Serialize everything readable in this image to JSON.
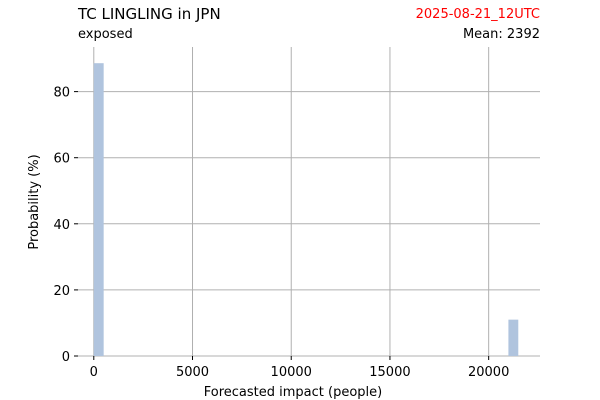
{
  "header": {
    "title": "TC LINGLING in JPN",
    "subtitle": "exposed",
    "date": "2025-08-21_12UTC",
    "mean": "Mean: 2392"
  },
  "colors": {
    "bar": "#b0c4de",
    "date_text": "#ff0000",
    "grid": "#b0b0b0"
  },
  "chart_data": {
    "type": "bar",
    "title": "TC LINGLING in JPN",
    "subtitle": "exposed",
    "xlabel": "Forecasted impact (people)",
    "ylabel": "Probability (%)",
    "xlim": [
      -800,
      22600
    ],
    "ylim": [
      0,
      93.5
    ],
    "grid": true,
    "bar_width": 500,
    "xticks": [
      0,
      5000,
      10000,
      15000,
      20000
    ],
    "yticks": [
      0,
      20,
      40,
      60,
      80
    ],
    "bars": [
      {
        "x_start": 0,
        "x_end": 500,
        "value": 88.6
      },
      {
        "x_start": 21000,
        "x_end": 21500,
        "value": 11.0
      }
    ]
  }
}
